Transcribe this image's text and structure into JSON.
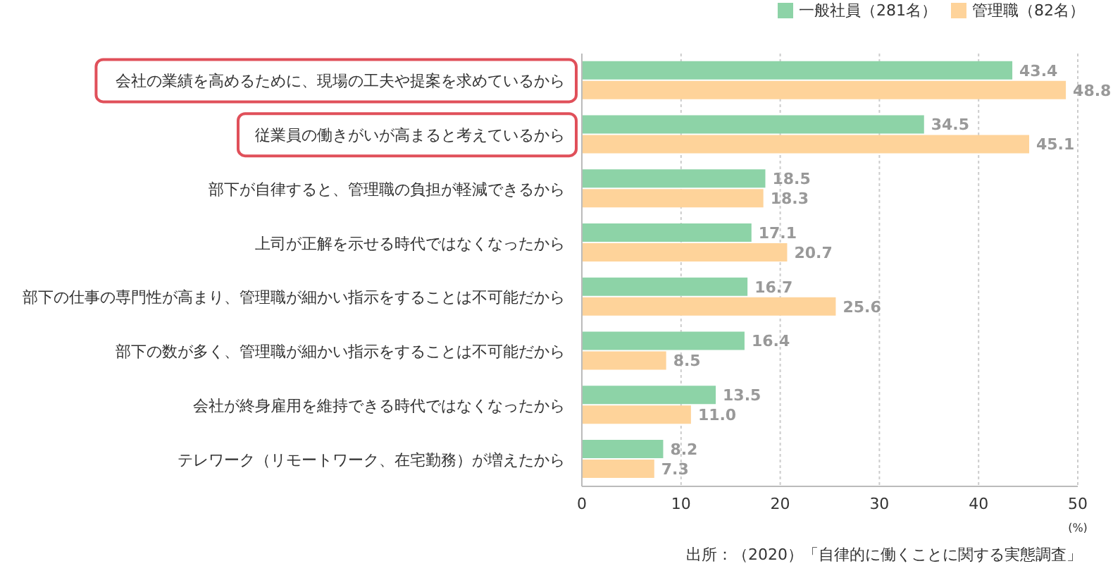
{
  "chart_data": {
    "type": "bar",
    "orientation": "horizontal",
    "categories": [
      "会社の業績を高めるために、現場の工夫や提案を求めているから",
      "従業員の働きがいが高まると考えているから",
      "部下が自律すると、管理職の負担が軽減できるから",
      "上司が正解を示せる時代ではなくなったから",
      "部下の仕事の専門性が高まり、管理職が細かい指示をすることは不可能だから",
      "部下の数が多く、管理職が細かい指示をすることは不可能だから",
      "会社が終身雇用を維持できる時代ではなくなったから",
      "テレワーク（リモートワーク、在宅勤務）が増えたから"
    ],
    "series": [
      {
        "name": "一般社員（281名）",
        "color": "#8dd3a7",
        "values": [
          43.4,
          34.5,
          18.5,
          17.1,
          16.7,
          16.4,
          13.5,
          8.2
        ],
        "value_labels": [
          "43.4",
          "34.5",
          "18.5",
          "17.1",
          "16.7",
          "16.4",
          "13.5",
          "8.2"
        ]
      },
      {
        "name": "管理職（82名）",
        "color": "#fed39a",
        "values": [
          48.8,
          45.1,
          18.3,
          20.7,
          25.6,
          8.5,
          11.0,
          7.3
        ],
        "value_labels": [
          "48.8",
          "45.1",
          "18.3",
          "20.7",
          "25.6",
          "8.5",
          "11.0",
          "7.3"
        ]
      }
    ],
    "xlim": [
      0,
      50
    ],
    "xticks": [
      0,
      10,
      20,
      30,
      40,
      50
    ],
    "xlabel": "(%)",
    "grid": "x",
    "legend": "top right",
    "annotations": [
      "出所：（2020）「自律的に働くことに関する実態調査」"
    ]
  }
}
